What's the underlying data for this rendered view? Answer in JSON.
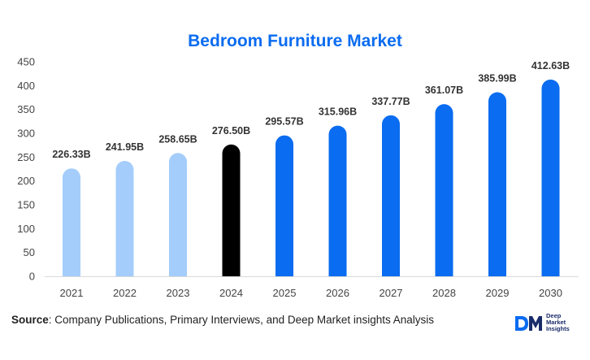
{
  "chart_data": {
    "type": "bar",
    "title": "Bedroom Furniture Market",
    "categories": [
      "2021",
      "2022",
      "2023",
      "2024",
      "2025",
      "2026",
      "2027",
      "2028",
      "2029",
      "2030"
    ],
    "values": [
      226.33,
      241.95,
      258.65,
      276.5,
      295.57,
      315.96,
      337.77,
      361.07,
      385.99,
      412.63
    ],
    "data_labels": [
      "226.33B",
      "241.95B",
      "258.65B",
      "276.50B",
      "295.57B",
      "315.96B",
      "337.77B",
      "361.07B",
      "385.99B",
      "412.63B"
    ],
    "bar_colors": [
      "#a4cdfb",
      "#a4cdfb",
      "#a4cdfb",
      "#000000",
      "#0a6cf0",
      "#0a6cf0",
      "#0a6cf0",
      "#0a6cf0",
      "#0a6cf0",
      "#0a6cf0"
    ],
    "ylim": [
      0,
      450
    ],
    "yticks": [
      0,
      50,
      100,
      150,
      200,
      250,
      300,
      350,
      400,
      450
    ],
    "xlabel": "",
    "ylabel": "",
    "grid": false,
    "title_color": "#0a6cf0"
  },
  "footer": {
    "source_label": "Source",
    "source_text": ": Company Publications, Primary Interviews, and Deep Market insights Analysis"
  },
  "logo": {
    "icon": "dm-logo-icon",
    "line1": "Deep",
    "line2": "Market",
    "line3": "Insights"
  }
}
